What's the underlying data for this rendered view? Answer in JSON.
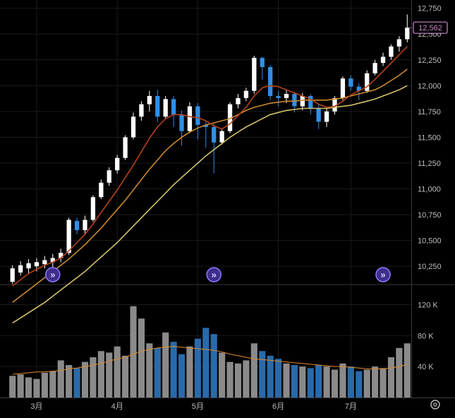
{
  "chart_data": {
    "type": "candlestick",
    "price_axis": {
      "range": [
        10080,
        12830
      ],
      "ticks": [
        10250,
        10500,
        10750,
        11000,
        11250,
        11500,
        11750,
        12000,
        12250,
        12500,
        12750
      ],
      "tick_labels": [
        "10,250",
        "10,500",
        "10,750",
        "11,000",
        "11,250",
        "11,500",
        "11,750",
        "12,000",
        "12,250",
        "12,500",
        "12,750"
      ]
    },
    "last_price": {
      "value": 12562,
      "label": "12,562"
    },
    "volume_axis": {
      "range": [
        0,
        135000
      ],
      "ticks": [
        40000,
        80000,
        120000
      ],
      "tick_labels": [
        "40 K",
        "80 K",
        "120 K"
      ]
    },
    "x_axis": {
      "labels": [
        "3月",
        "4月",
        "5月",
        "6月",
        "7月"
      ],
      "label_bar_index": [
        3,
        13,
        23,
        33,
        42
      ]
    },
    "event_markers": {
      "bar_index": [
        5,
        25,
        46
      ],
      "symbol": "»"
    },
    "series_style": {
      "up_body": "#ffffff",
      "down_body": "#2f8fe6",
      "ma_short": "#b5421a",
      "ma_mid": "#c98a2e",
      "ma_long": "#d2c26a",
      "vol_up": "#8a8a8a",
      "vol_down": "#2a6aa8",
      "vol_ma": "#e08a2a",
      "marker_fill": "#3f2d8c",
      "marker_stroke": "#8c7bff",
      "last_tag": "#c98ac8"
    },
    "candles": [
      [
        10100,
        10230,
        10080,
        10260
      ],
      [
        10190,
        10260,
        10160,
        10300
      ],
      [
        10230,
        10280,
        10180,
        10320
      ],
      [
        10250,
        10290,
        10200,
        10330
      ],
      [
        10270,
        10310,
        10230,
        10350
      ],
      [
        10290,
        10330,
        10240,
        10370
      ],
      [
        10330,
        10380,
        10290,
        10420
      ],
      [
        10380,
        10700,
        10360,
        10720
      ],
      [
        10690,
        10600,
        10560,
        10720
      ],
      [
        10600,
        10700,
        10570,
        10740
      ],
      [
        10700,
        10920,
        10680,
        10940
      ],
      [
        10920,
        11060,
        10900,
        11090
      ],
      [
        11060,
        11180,
        11030,
        11210
      ],
      [
        11180,
        11300,
        11150,
        11330
      ],
      [
        11300,
        11500,
        11280,
        11520
      ],
      [
        11500,
        11700,
        11480,
        11740
      ],
      [
        11700,
        11820,
        11660,
        11850
      ],
      [
        11820,
        11900,
        11750,
        11950
      ],
      [
        11900,
        11700,
        11650,
        11960
      ],
      [
        11700,
        11870,
        11680,
        11900
      ],
      [
        11870,
        11720,
        11600,
        11900
      ],
      [
        11720,
        11560,
        11420,
        11760
      ],
      [
        11560,
        11800,
        11540,
        11840
      ],
      [
        11800,
        11620,
        11480,
        11830
      ],
      [
        11620,
        11600,
        11400,
        11650
      ],
      [
        11600,
        11450,
        11150,
        11630
      ],
      [
        11450,
        11560,
        11430,
        11580
      ],
      [
        11560,
        11820,
        11540,
        11840
      ],
      [
        11820,
        11880,
        11780,
        11920
      ],
      [
        11880,
        11950,
        11850,
        11980
      ],
      [
        11950,
        12270,
        11920,
        12290
      ],
      [
        12270,
        12180,
        12060,
        12280
      ],
      [
        12180,
        11900,
        11860,
        12200
      ],
      [
        11900,
        11880,
        11800,
        11950
      ],
      [
        11880,
        11920,
        11830,
        11960
      ],
      [
        11920,
        11800,
        11740,
        11940
      ],
      [
        11800,
        11900,
        11760,
        11930
      ],
      [
        11900,
        11780,
        11720,
        11920
      ],
      [
        11780,
        11650,
        11580,
        11820
      ],
      [
        11650,
        11750,
        11600,
        11780
      ],
      [
        11750,
        11880,
        11720,
        11900
      ],
      [
        11880,
        12070,
        11860,
        12090
      ],
      [
        12070,
        11990,
        11950,
        12100
      ],
      [
        11990,
        11950,
        11860,
        12020
      ],
      [
        11950,
        12120,
        11930,
        12150
      ],
      [
        12120,
        12220,
        12100,
        12250
      ],
      [
        12220,
        12280,
        12190,
        12320
      ],
      [
        12280,
        12380,
        12250,
        12400
      ],
      [
        12380,
        12450,
        12330,
        12480
      ],
      [
        12450,
        12562,
        12420,
        12690
      ]
    ],
    "volume": [
      28000,
      30000,
      26000,
      24000,
      32000,
      34000,
      48000,
      42000,
      38000,
      46000,
      52000,
      60000,
      58000,
      66000,
      54000,
      118000,
      102000,
      70000,
      64000,
      84000,
      72000,
      56000,
      66000,
      76000,
      90000,
      82000,
      58000,
      46000,
      44000,
      48000,
      70000,
      60000,
      54000,
      50000,
      44000,
      42000,
      40000,
      38000,
      42000,
      40000,
      36000,
      44000,
      40000,
      34000,
      36000,
      40000,
      38000,
      52000,
      64000,
      70000
    ],
    "ma_short": [
      10060,
      10120,
      10180,
      10220,
      10260,
      10290,
      10330,
      10400,
      10480,
      10560,
      10660,
      10770,
      10880,
      10990,
      11110,
      11230,
      11360,
      11490,
      11600,
      11680,
      11720,
      11720,
      11700,
      11690,
      11660,
      11610,
      11580,
      11630,
      11710,
      11790,
      11900,
      11980,
      12000,
      11990,
      11960,
      11930,
      11900,
      11870,
      11820,
      11790,
      11800,
      11850,
      11910,
      11950,
      11990,
      12060,
      12140,
      12220,
      12300,
      12380
    ],
    "ma_mid": [
      9900,
      9960,
      10020,
      10080,
      10140,
      10200,
      10260,
      10320,
      10390,
      10460,
      10540,
      10620,
      10710,
      10800,
      10890,
      10990,
      11090,
      11190,
      11280,
      11370,
      11440,
      11500,
      11550,
      11590,
      11620,
      11640,
      11660,
      11680,
      11720,
      11760,
      11790,
      11810,
      11830,
      11840,
      11850,
      11850,
      11860,
      11860,
      11860,
      11860,
      11870,
      11880,
      11900,
      11920,
      11940,
      11960,
      12000,
      12050,
      12100,
      12160
    ],
    "ma_long": [
      9700,
      9750,
      9800,
      9850,
      9900,
      9960,
      10020,
      10080,
      10140,
      10200,
      10270,
      10340,
      10410,
      10480,
      10560,
      10640,
      10720,
      10800,
      10880,
      10960,
      11040,
      11110,
      11180,
      11250,
      11320,
      11380,
      11440,
      11500,
      11550,
      11600,
      11640,
      11680,
      11720,
      11740,
      11760,
      11770,
      11780,
      11780,
      11780,
      11780,
      11790,
      11800,
      11810,
      11830,
      11850,
      11870,
      11900,
      11930,
      11960,
      12000
    ],
    "vol_ma": [
      30000,
      31000,
      32000,
      33000,
      33000,
      34000,
      35000,
      37000,
      38000,
      40000,
      42000,
      44000,
      47000,
      50000,
      52000,
      56000,
      60000,
      62000,
      64000,
      65000,
      66000,
      65000,
      64000,
      63000,
      62000,
      61000,
      59000,
      56000,
      54000,
      52000,
      50000,
      49000,
      48000,
      47000,
      46000,
      45000,
      44000,
      43000,
      42000,
      41000,
      40000,
      40000,
      39000,
      38000,
      37000,
      37000,
      37000,
      38000,
      40000,
      43000
    ]
  },
  "ui": {
    "settings_icon": "gear-icon"
  }
}
